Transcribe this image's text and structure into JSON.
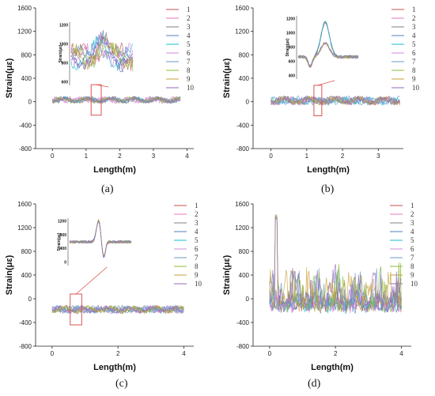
{
  "chart_data": [
    {
      "type": "line",
      "panel_label": "(a)",
      "xlabel": "Length(m)",
      "ylabel": "Strain(με)",
      "xlim": [
        -0.5,
        4.2
      ],
      "ylim": [
        -800,
        1600
      ],
      "xticks": [
        "0",
        "1",
        "2",
        "3",
        "4"
      ],
      "yticks": [
        "-800",
        "-400",
        "0",
        "400",
        "800",
        "1200",
        "1600"
      ],
      "legend_position": "top-right",
      "legend": [
        "1",
        "2",
        "3",
        "4",
        "5",
        "6",
        "7",
        "8",
        "9",
        "10"
      ],
      "x_range": [
        0,
        3.8
      ],
      "baseline": 30,
      "amplitude": 60,
      "highlight_box": [
        1.15,
        1.45
      ],
      "inset_ylabel": "Strain(με)",
      "inset_yticks": [
        "1200",
        "1000",
        "800",
        "600"
      ]
    },
    {
      "type": "line",
      "panel_label": "(b)",
      "xlabel": "Length(m)",
      "ylabel": "Strain(με)",
      "xlim": [
        -0.5,
        3.7
      ],
      "ylim": [
        -800,
        1600
      ],
      "xticks": [
        "0",
        "1",
        "2",
        "3"
      ],
      "yticks": [
        "-800",
        "-400",
        "0",
        "400",
        "800",
        "1200",
        "1600"
      ],
      "legend_position": "top-right",
      "legend": [
        "1",
        "2",
        "3",
        "4",
        "5",
        "6",
        "7",
        "8",
        "9",
        "10"
      ],
      "x_range": [
        0,
        3.6
      ],
      "baseline": 20,
      "amplitude": 80,
      "highlight_box": [
        1.2,
        1.42
      ],
      "inset_ylabel": "Strain(με)",
      "inset_yticks": [
        "1200",
        "1000",
        "800",
        "600",
        "400"
      ]
    },
    {
      "type": "line",
      "panel_label": "(c)",
      "xlabel": "Length(m)",
      "ylabel": "Strain(με)",
      "xlim": [
        -0.5,
        4.3
      ],
      "ylim": [
        -800,
        1600
      ],
      "xticks": [
        "0",
        "2",
        "4"
      ],
      "yticks": [
        "-800",
        "-400",
        "0",
        "400",
        "800",
        "1200",
        "1600"
      ],
      "legend_position": "top-right",
      "legend": [
        "1",
        "2",
        "3",
        "4",
        "5",
        "6",
        "7",
        "8",
        "9",
        "10"
      ],
      "x_range": [
        0,
        4
      ],
      "baseline": -180,
      "amplitude": 70,
      "highlight_box": [
        0.55,
        0.9
      ],
      "inset_ylabel": "Strain(με)",
      "inset_yticks": [
        "1200",
        "800",
        "400",
        "0"
      ]
    },
    {
      "type": "line",
      "panel_label": "(d)",
      "xlabel": "Length(m)",
      "ylabel": "Strain(με)",
      "xlim": [
        -0.5,
        4.3
      ],
      "ylim": [
        -800,
        1600
      ],
      "xticks": [
        "0",
        "2",
        "4"
      ],
      "yticks": [
        "-800",
        "-400",
        "0",
        "400",
        "800",
        "1200",
        "1600"
      ],
      "legend_position": "top-right",
      "legend": [
        "1",
        "2",
        "3",
        "4",
        "5",
        "6",
        "7",
        "8",
        "9",
        "10"
      ],
      "x_range": [
        0,
        4
      ],
      "baseline": -150,
      "amplitude": 250,
      "peak_max": 1420
    }
  ],
  "series_colors": [
    "#c0504d",
    "#e377c2",
    "#7f7f7f",
    "#4f81bd",
    "#17becf",
    "#d08ae0",
    "#6699cc",
    "#8cbc3a",
    "#c7a03a",
    "#9467bd"
  ]
}
